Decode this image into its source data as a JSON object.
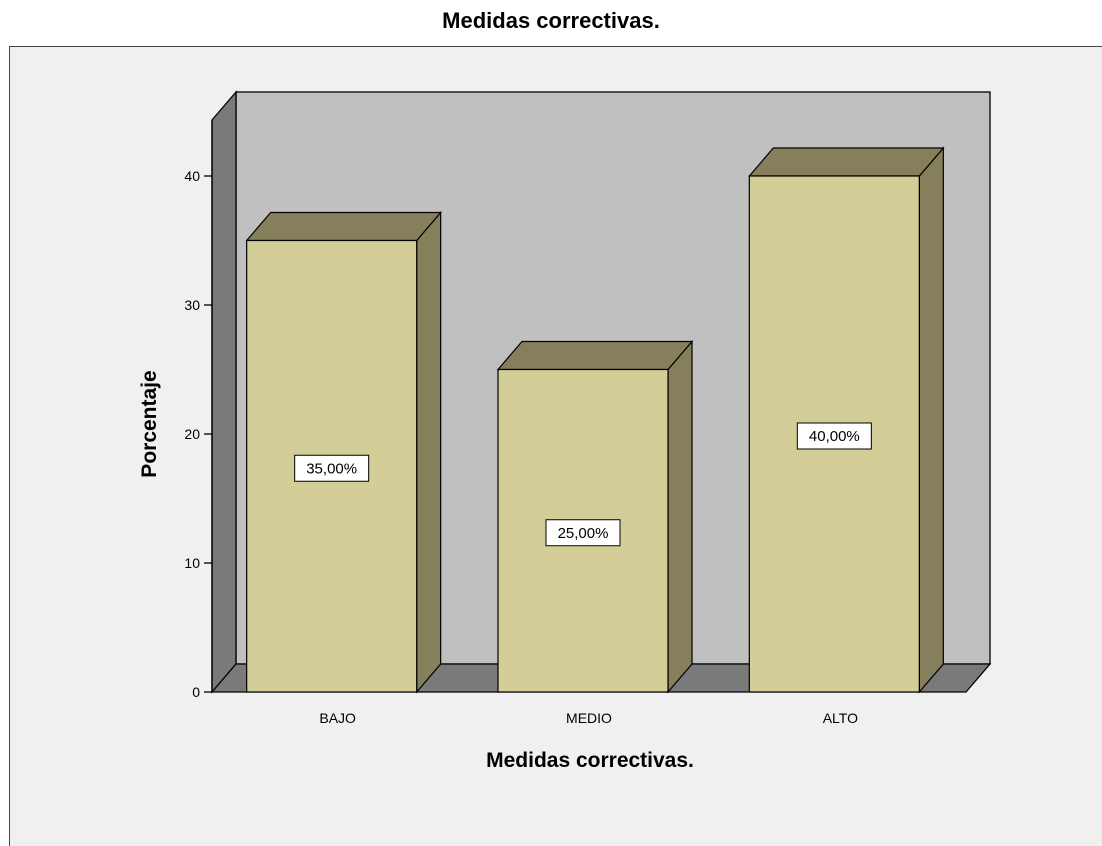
{
  "chart_data": {
    "type": "bar",
    "title": "Medidas correctivas.",
    "xlabel": "Medidas correctivas.",
    "ylabel": "Porcentaje",
    "categories": [
      "BAJO",
      "MEDIO",
      "ALTO"
    ],
    "values": [
      35,
      25,
      40
    ],
    "value_labels": [
      "35,00%",
      "25,00%",
      "40,00%"
    ],
    "yticks": [
      0,
      10,
      20,
      30,
      40
    ],
    "ylim": [
      0,
      40
    ],
    "grid": false,
    "legend": "none",
    "three_d": true,
    "colors": {
      "bar_front": "#d3cd97",
      "bar_side": "#857f5b",
      "back_wall": "#c0c0c0",
      "side_wall": "#7a7a7a",
      "floor": "#7a7a7a",
      "frame_bg": "#f0f0f0"
    }
  }
}
